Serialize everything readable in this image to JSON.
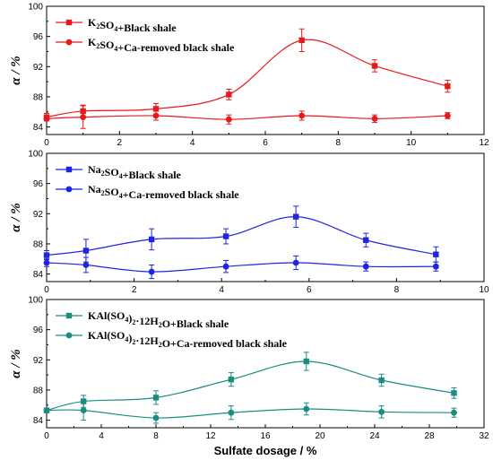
{
  "chart_data": [
    {
      "type": "line",
      "xlabel": "",
      "ylabel": "α / %",
      "xlim": [
        0,
        12
      ],
      "ylim": [
        83,
        100
      ],
      "xticks": [
        0,
        2,
        4,
        6,
        8,
        10,
        12
      ],
      "yticks": [
        84,
        88,
        92,
        96,
        100
      ],
      "legend_position": "top-left",
      "series": [
        {
          "name": "K2SO4+Black shale",
          "legend": {
            "base": "K",
            "sub1": "2",
            "mid": "SO",
            "sub2": "4",
            "rest": "+Black shale"
          },
          "color": "#e8191b",
          "marker": "square",
          "x": [
            0,
            1,
            3,
            5,
            7,
            9,
            11
          ],
          "y": [
            85.3,
            86.1,
            86.4,
            88.3,
            95.5,
            92.1,
            89.4
          ],
          "err": [
            0.5,
            0.8,
            0.7,
            0.7,
            1.5,
            0.8,
            0.8
          ]
        },
        {
          "name": "K2SO4+Ca-removed black shale",
          "legend": {
            "base": "K",
            "sub1": "2",
            "mid": "SO",
            "sub2": "4",
            "rest": "+Ca-removed black shale"
          },
          "color": "#e8191b",
          "marker": "circle",
          "x": [
            0,
            1,
            3,
            5,
            7,
            9,
            11
          ],
          "y": [
            85.1,
            85.3,
            85.5,
            85.0,
            85.5,
            85.1,
            85.5
          ],
          "err": [
            0.3,
            1.5,
            0.6,
            0.6,
            0.6,
            0.5,
            0.4
          ]
        }
      ]
    },
    {
      "type": "line",
      "xlabel": "",
      "ylabel": "α / %",
      "xlim": [
        0,
        10
      ],
      "ylim": [
        83,
        100
      ],
      "xticks": [
        0,
        2,
        4,
        6,
        8,
        10
      ],
      "yticks": [
        84,
        88,
        92,
        96,
        100
      ],
      "legend_position": "top-left",
      "series": [
        {
          "name": "Na2SO4+Black shale",
          "legend": {
            "base": "Na",
            "sub1": "2",
            "mid": "SO",
            "sub2": "4",
            "rest": "+Black shale"
          },
          "color": "#1f24e0",
          "marker": "square",
          "x": [
            0,
            0.9,
            2.4,
            4.1,
            5.7,
            7.3,
            8.9
          ],
          "y": [
            86.5,
            87.1,
            88.6,
            89.0,
            91.6,
            88.5,
            86.6
          ],
          "err": [
            0.6,
            1.5,
            1.4,
            1.0,
            1.4,
            0.9,
            1.0
          ]
        },
        {
          "name": "Na2SO4+Ca-removed  black shale",
          "legend": {
            "base": "Na",
            "sub1": "2",
            "mid": "SO",
            "sub2": "4",
            "rest": "+Ca-removed  black shale"
          },
          "color": "#1f24e0",
          "marker": "circle",
          "x": [
            0,
            0.9,
            2.4,
            4.1,
            5.7,
            7.3,
            8.9
          ],
          "y": [
            85.5,
            85.2,
            84.3,
            85.0,
            85.5,
            85.0,
            85.0
          ],
          "err": [
            0.5,
            1.0,
            0.9,
            0.8,
            0.9,
            0.6,
            0.6
          ]
        }
      ]
    },
    {
      "type": "line",
      "xlabel": "Sulfate dosage / %",
      "ylabel": "α / %",
      "xlim": [
        0,
        32
      ],
      "ylim": [
        83,
        100
      ],
      "xticks": [
        0,
        4,
        8,
        12,
        16,
        20,
        24,
        28,
        32
      ],
      "yticks": [
        84,
        88,
        92,
        96,
        100
      ],
      "legend_position": "top-left",
      "series": [
        {
          "name": "KAl(SO4)2·12H2O+Black shale",
          "legend": {
            "base": "KAl(SO",
            "sub1": "4",
            "mid": ")",
            "sub2": "2",
            "mid2": "·12H",
            "sub3": "2",
            "rest": "O+Black shale"
          },
          "color": "#1b8c80",
          "marker": "square",
          "x": [
            0,
            2.7,
            8,
            13.5,
            19,
            24.5,
            29.8
          ],
          "y": [
            85.3,
            86.5,
            87.0,
            89.4,
            91.8,
            89.3,
            87.6
          ],
          "err": [
            0.3,
            0.8,
            0.9,
            0.9,
            1.2,
            0.8,
            0.7
          ]
        },
        {
          "name": "KAl(SO4)2·12H2O+Ca-removed black shale",
          "legend": {
            "base": "KAl(SO",
            "sub1": "4",
            "mid": ")",
            "sub2": "2",
            "mid2": "·12H",
            "sub3": "2",
            "rest": "O+Ca-removed black shale"
          },
          "color": "#1b8c80",
          "marker": "circle",
          "x": [
            0,
            2.7,
            8,
            13.5,
            19,
            24.5,
            29.8
          ],
          "y": [
            85.3,
            85.3,
            84.3,
            85.0,
            85.5,
            85.1,
            85.0
          ],
          "err": [
            0.3,
            1.3,
            0.7,
            0.9,
            0.8,
            0.8,
            0.6
          ]
        }
      ]
    }
  ]
}
